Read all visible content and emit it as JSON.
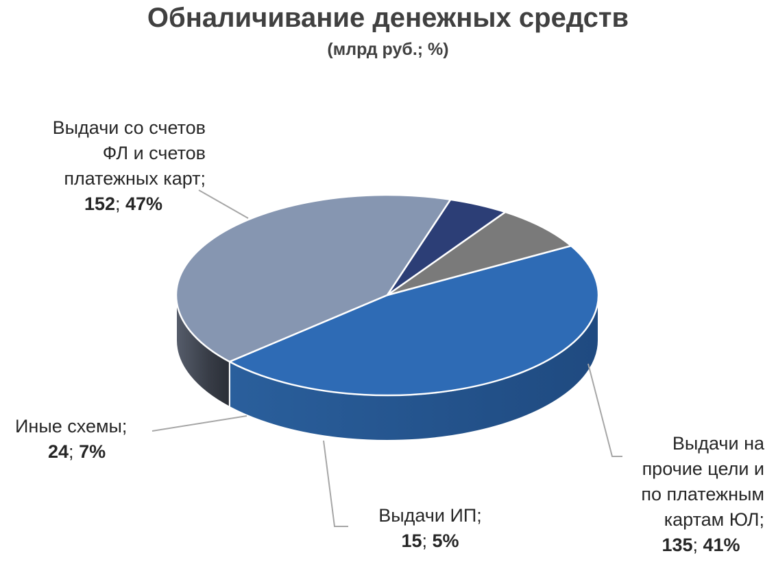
{
  "chart_data": {
    "type": "pie",
    "title": "Обналичивание денежных средств",
    "subtitle": "(млрд руб.; %)",
    "slices": [
      {
        "label_lines": [
          "Выдачи со счетов",
          "ФЛ и счетов",
          "платежных карт;"
        ],
        "value": "152",
        "percent": "47%",
        "value_num": 152,
        "color": "#2E6BB5"
      },
      {
        "label_lines": [
          "Выдачи на",
          "прочие цели и",
          "по платежным",
          "картам ЮЛ;"
        ],
        "value": "135",
        "percent": "41%",
        "value_num": 135,
        "color": "#8696B1"
      },
      {
        "label_lines": [
          "Выдачи ИП;"
        ],
        "value": "15",
        "percent": "5%",
        "value_num": 15,
        "color": "#2C3E76"
      },
      {
        "label_lines": [
          "Иные схемы;"
        ],
        "value": "24",
        "percent": "7%",
        "value_num": 24,
        "color": "#7A7A7A"
      }
    ]
  }
}
